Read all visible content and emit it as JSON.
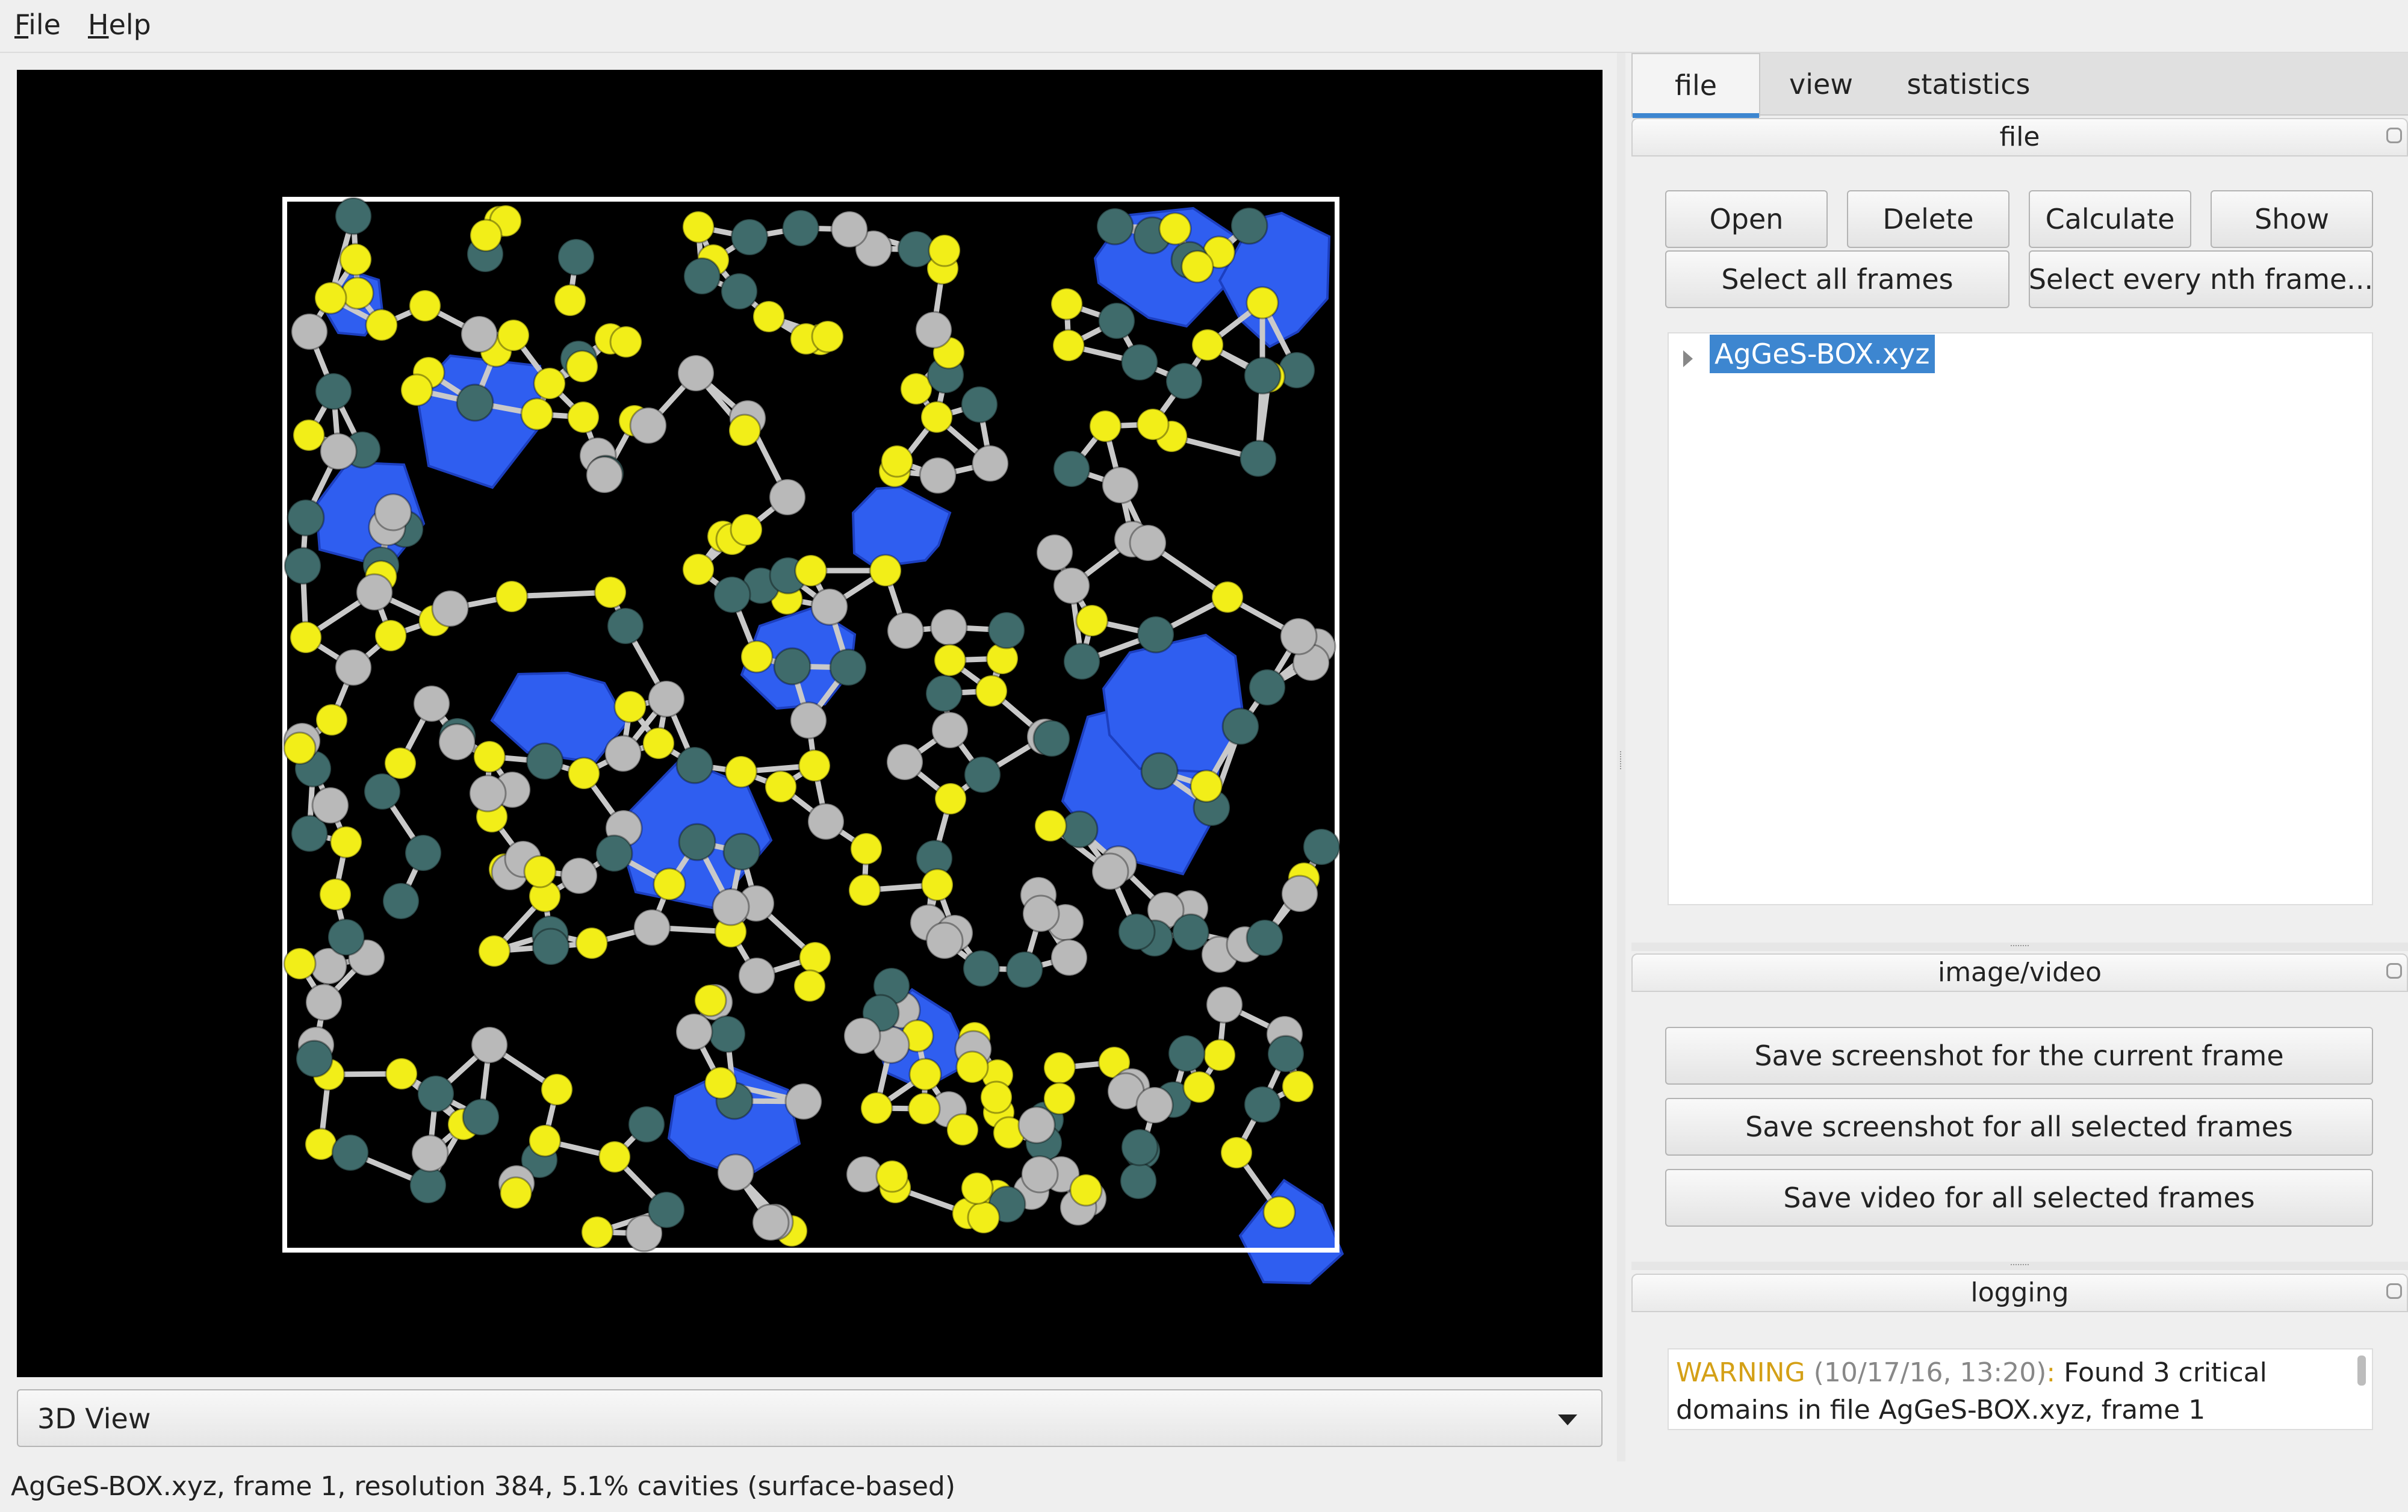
{
  "menubar": {
    "file": {
      "accel": "F",
      "rest": "ile"
    },
    "help": {
      "accel": "H",
      "rest": "elp"
    }
  },
  "viewport": {
    "name": "3D molecule view",
    "colors": {
      "background": "#000000",
      "cavity": "#2f5ef0",
      "atom_yellow": "#f2ee18",
      "atom_gray": "#b9b9b9",
      "atom_teal": "#3f6b6b",
      "bond": "#c9c9c9",
      "box": "#ffffff"
    }
  },
  "view_combo": {
    "selected": "3D View"
  },
  "status_bar": {
    "text": "AgGeS-BOX.xyz, frame 1, resolution 384, 5.1% cavities (surface-based)"
  },
  "tabs": [
    {
      "label": "file",
      "active": true
    },
    {
      "label": "view",
      "active": false
    },
    {
      "label": "statistics",
      "active": false
    }
  ],
  "file_section": {
    "title": "file",
    "buttons": {
      "open": "Open",
      "delete": "Delete",
      "calculate": "Calculate",
      "show": "Show",
      "select_all": "Select all frames",
      "select_nth": "Select every nth frame..."
    },
    "tree_items": [
      {
        "label": "AgGeS-BOX.xyz",
        "selected": true
      }
    ]
  },
  "image_video_section": {
    "title": "image/video",
    "buttons": {
      "save_current": "Save screenshot for the current frame",
      "save_selected": "Save screenshot for all selected frames",
      "save_video": "Save video for all selected frames"
    }
  },
  "logging_section": {
    "title": "logging",
    "entry": {
      "level": "WARNING",
      "timestamp": "(10/17/16, 13:20)",
      "separator": ":",
      "message": "Found 3 critical domains in file AgGeS-BOX.xyz, frame 1",
      "colors": {
        "level": "#d4a017",
        "timestamp": "#888888"
      }
    }
  }
}
